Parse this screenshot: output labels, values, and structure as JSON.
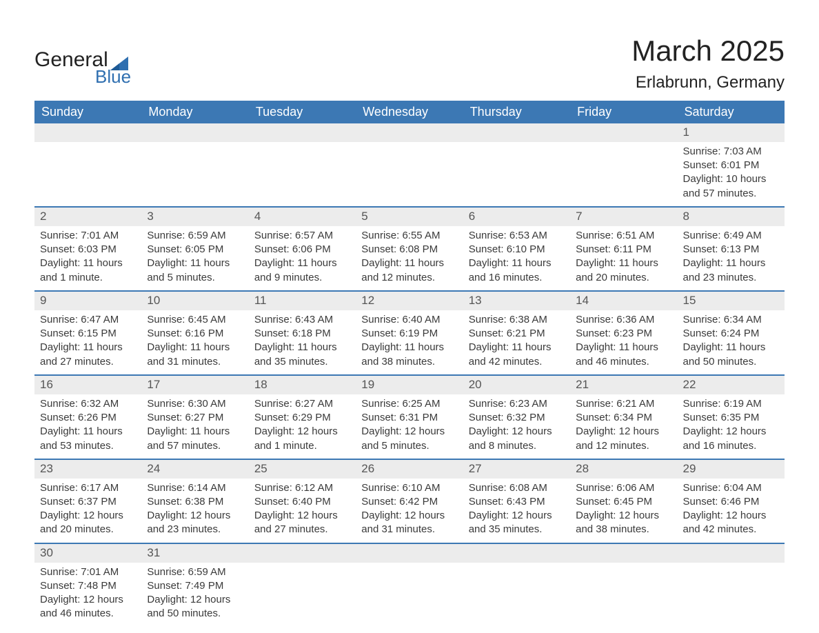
{
  "logo": {
    "word1": "General",
    "word2": "Blue",
    "text_color": "#222222",
    "accent_color": "#2f6fb0"
  },
  "title": {
    "month": "March 2025",
    "location": "Erlabrunn, Germany"
  },
  "colors": {
    "header_bg": "#3c78b4",
    "header_text": "#ffffff",
    "row_divider": "#3c78b4",
    "daynum_bg": "#ececec",
    "body_text": "#3a3a3a",
    "page_bg": "#ffffff"
  },
  "typography": {
    "title_fontsize_pt": 32,
    "location_fontsize_pt": 18,
    "header_fontsize_pt": 14,
    "cell_fontsize_pt": 11,
    "font_family": "Arial"
  },
  "daysOfWeek": [
    "Sunday",
    "Monday",
    "Tuesday",
    "Wednesday",
    "Thursday",
    "Friday",
    "Saturday"
  ],
  "weeks": [
    [
      null,
      null,
      null,
      null,
      null,
      null,
      {
        "n": "1",
        "sunrise": "Sunrise: 7:03 AM",
        "sunset": "Sunset: 6:01 PM",
        "daylight": "Daylight: 10 hours and 57 minutes."
      }
    ],
    [
      {
        "n": "2",
        "sunrise": "Sunrise: 7:01 AM",
        "sunset": "Sunset: 6:03 PM",
        "daylight": "Daylight: 11 hours and 1 minute."
      },
      {
        "n": "3",
        "sunrise": "Sunrise: 6:59 AM",
        "sunset": "Sunset: 6:05 PM",
        "daylight": "Daylight: 11 hours and 5 minutes."
      },
      {
        "n": "4",
        "sunrise": "Sunrise: 6:57 AM",
        "sunset": "Sunset: 6:06 PM",
        "daylight": "Daylight: 11 hours and 9 minutes."
      },
      {
        "n": "5",
        "sunrise": "Sunrise: 6:55 AM",
        "sunset": "Sunset: 6:08 PM",
        "daylight": "Daylight: 11 hours and 12 minutes."
      },
      {
        "n": "6",
        "sunrise": "Sunrise: 6:53 AM",
        "sunset": "Sunset: 6:10 PM",
        "daylight": "Daylight: 11 hours and 16 minutes."
      },
      {
        "n": "7",
        "sunrise": "Sunrise: 6:51 AM",
        "sunset": "Sunset: 6:11 PM",
        "daylight": "Daylight: 11 hours and 20 minutes."
      },
      {
        "n": "8",
        "sunrise": "Sunrise: 6:49 AM",
        "sunset": "Sunset: 6:13 PM",
        "daylight": "Daylight: 11 hours and 23 minutes."
      }
    ],
    [
      {
        "n": "9",
        "sunrise": "Sunrise: 6:47 AM",
        "sunset": "Sunset: 6:15 PM",
        "daylight": "Daylight: 11 hours and 27 minutes."
      },
      {
        "n": "10",
        "sunrise": "Sunrise: 6:45 AM",
        "sunset": "Sunset: 6:16 PM",
        "daylight": "Daylight: 11 hours and 31 minutes."
      },
      {
        "n": "11",
        "sunrise": "Sunrise: 6:43 AM",
        "sunset": "Sunset: 6:18 PM",
        "daylight": "Daylight: 11 hours and 35 minutes."
      },
      {
        "n": "12",
        "sunrise": "Sunrise: 6:40 AM",
        "sunset": "Sunset: 6:19 PM",
        "daylight": "Daylight: 11 hours and 38 minutes."
      },
      {
        "n": "13",
        "sunrise": "Sunrise: 6:38 AM",
        "sunset": "Sunset: 6:21 PM",
        "daylight": "Daylight: 11 hours and 42 minutes."
      },
      {
        "n": "14",
        "sunrise": "Sunrise: 6:36 AM",
        "sunset": "Sunset: 6:23 PM",
        "daylight": "Daylight: 11 hours and 46 minutes."
      },
      {
        "n": "15",
        "sunrise": "Sunrise: 6:34 AM",
        "sunset": "Sunset: 6:24 PM",
        "daylight": "Daylight: 11 hours and 50 minutes."
      }
    ],
    [
      {
        "n": "16",
        "sunrise": "Sunrise: 6:32 AM",
        "sunset": "Sunset: 6:26 PM",
        "daylight": "Daylight: 11 hours and 53 minutes."
      },
      {
        "n": "17",
        "sunrise": "Sunrise: 6:30 AM",
        "sunset": "Sunset: 6:27 PM",
        "daylight": "Daylight: 11 hours and 57 minutes."
      },
      {
        "n": "18",
        "sunrise": "Sunrise: 6:27 AM",
        "sunset": "Sunset: 6:29 PM",
        "daylight": "Daylight: 12 hours and 1 minute."
      },
      {
        "n": "19",
        "sunrise": "Sunrise: 6:25 AM",
        "sunset": "Sunset: 6:31 PM",
        "daylight": "Daylight: 12 hours and 5 minutes."
      },
      {
        "n": "20",
        "sunrise": "Sunrise: 6:23 AM",
        "sunset": "Sunset: 6:32 PM",
        "daylight": "Daylight: 12 hours and 8 minutes."
      },
      {
        "n": "21",
        "sunrise": "Sunrise: 6:21 AM",
        "sunset": "Sunset: 6:34 PM",
        "daylight": "Daylight: 12 hours and 12 minutes."
      },
      {
        "n": "22",
        "sunrise": "Sunrise: 6:19 AM",
        "sunset": "Sunset: 6:35 PM",
        "daylight": "Daylight: 12 hours and 16 minutes."
      }
    ],
    [
      {
        "n": "23",
        "sunrise": "Sunrise: 6:17 AM",
        "sunset": "Sunset: 6:37 PM",
        "daylight": "Daylight: 12 hours and 20 minutes."
      },
      {
        "n": "24",
        "sunrise": "Sunrise: 6:14 AM",
        "sunset": "Sunset: 6:38 PM",
        "daylight": "Daylight: 12 hours and 23 minutes."
      },
      {
        "n": "25",
        "sunrise": "Sunrise: 6:12 AM",
        "sunset": "Sunset: 6:40 PM",
        "daylight": "Daylight: 12 hours and 27 minutes."
      },
      {
        "n": "26",
        "sunrise": "Sunrise: 6:10 AM",
        "sunset": "Sunset: 6:42 PM",
        "daylight": "Daylight: 12 hours and 31 minutes."
      },
      {
        "n": "27",
        "sunrise": "Sunrise: 6:08 AM",
        "sunset": "Sunset: 6:43 PM",
        "daylight": "Daylight: 12 hours and 35 minutes."
      },
      {
        "n": "28",
        "sunrise": "Sunrise: 6:06 AM",
        "sunset": "Sunset: 6:45 PM",
        "daylight": "Daylight: 12 hours and 38 minutes."
      },
      {
        "n": "29",
        "sunrise": "Sunrise: 6:04 AM",
        "sunset": "Sunset: 6:46 PM",
        "daylight": "Daylight: 12 hours and 42 minutes."
      }
    ],
    [
      {
        "n": "30",
        "sunrise": "Sunrise: 7:01 AM",
        "sunset": "Sunset: 7:48 PM",
        "daylight": "Daylight: 12 hours and 46 minutes."
      },
      {
        "n": "31",
        "sunrise": "Sunrise: 6:59 AM",
        "sunset": "Sunset: 7:49 PM",
        "daylight": "Daylight: 12 hours and 50 minutes."
      },
      null,
      null,
      null,
      null,
      null
    ]
  ]
}
